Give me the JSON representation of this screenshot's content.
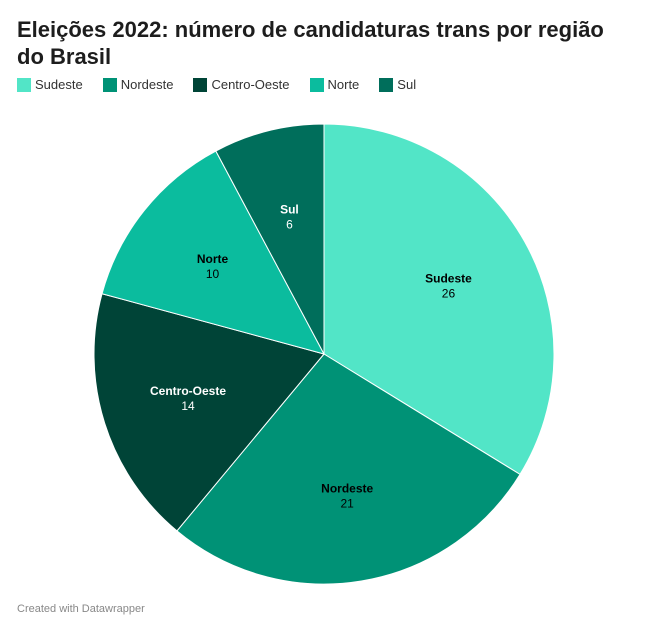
{
  "chart_data": {
    "type": "pie",
    "title": "Eleições 2022: número de candidaturas trans por região do Brasil",
    "legend_position": "top-left",
    "slices": [
      {
        "label": "Sudeste",
        "value": 26,
        "color": "#52e5c7",
        "text_color": "#000000"
      },
      {
        "label": "Nordeste",
        "value": 21,
        "color": "#009276",
        "text_color": "#000000"
      },
      {
        "label": "Centro-Oeste",
        "value": 14,
        "color": "#004437",
        "text_color": "#ffffff"
      },
      {
        "label": "Norte",
        "value": 10,
        "color": "#0bbc9e",
        "text_color": "#000000"
      },
      {
        "label": "Sul",
        "value": 6,
        "color": "#006e5b",
        "text_color": "#ffffff"
      }
    ]
  },
  "footer": {
    "credit": "Created with Datawrapper"
  }
}
